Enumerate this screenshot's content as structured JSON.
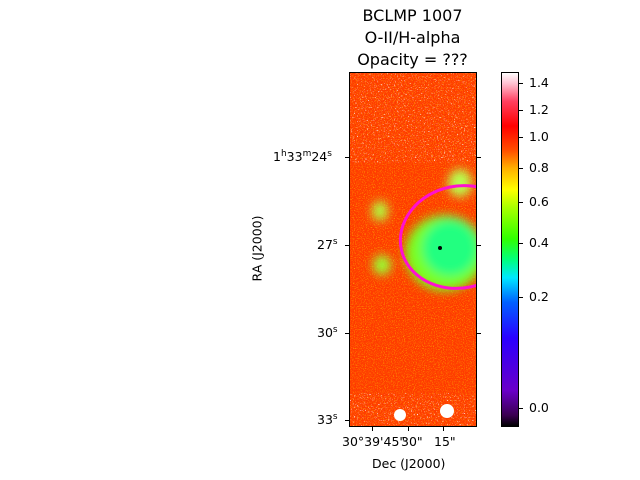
{
  "title": {
    "line1": "BCLMP 1007",
    "line2": "O-II/H-alpha",
    "line3": "Opacity = ???"
  },
  "axes": {
    "xlabel": "Dec (J2000)",
    "ylabel": "RA (J2000)",
    "x_ticks": [
      {
        "deg": "30°39'45",
        "s": "\""
      },
      {
        "deg": "30",
        "s": "\""
      },
      {
        "deg": "15",
        "s": "\""
      }
    ],
    "y_ticks": [
      {
        "h": "1",
        "hu": "h",
        "m": "33",
        "mu": "m",
        "s": "24",
        "su": "s"
      },
      {
        "s": "27",
        "su": "s"
      },
      {
        "s": "30",
        "su": "s"
      },
      {
        "s": "33",
        "su": "s"
      }
    ]
  },
  "colorbar": {
    "ticks": [
      "1.4",
      "1.2",
      "1.0",
      "0.8",
      "0.6",
      "0.4",
      "0.2",
      "0.0"
    ]
  },
  "colors": {
    "ellipse": "#ff00d0",
    "map_background": "#ff3000"
  }
}
